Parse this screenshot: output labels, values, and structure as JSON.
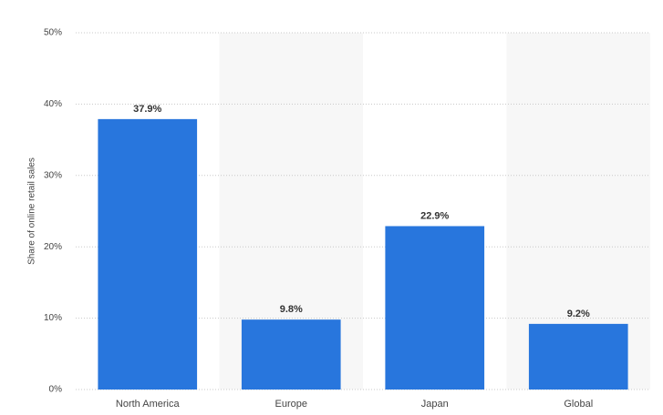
{
  "chart_data": {
    "type": "bar",
    "y_label": "Share of online retail sales",
    "categories": [
      "North America",
      "Europe",
      "Japan",
      "Global"
    ],
    "values": [
      37.9,
      9.8,
      22.9,
      9.2
    ],
    "value_labels": [
      "37.9%",
      "9.8%",
      "22.9%",
      "9.2%"
    ],
    "color": "#2876dd",
    "ylim": [
      0,
      50
    ],
    "yticks": [
      {
        "value": 0,
        "label": "0%"
      },
      {
        "value": 10,
        "label": "10%"
      },
      {
        "value": 20,
        "label": "20%"
      },
      {
        "value": 30,
        "label": "30%"
      },
      {
        "value": 40,
        "label": "40%"
      },
      {
        "value": 50,
        "label": "50%"
      }
    ],
    "grid": true
  }
}
